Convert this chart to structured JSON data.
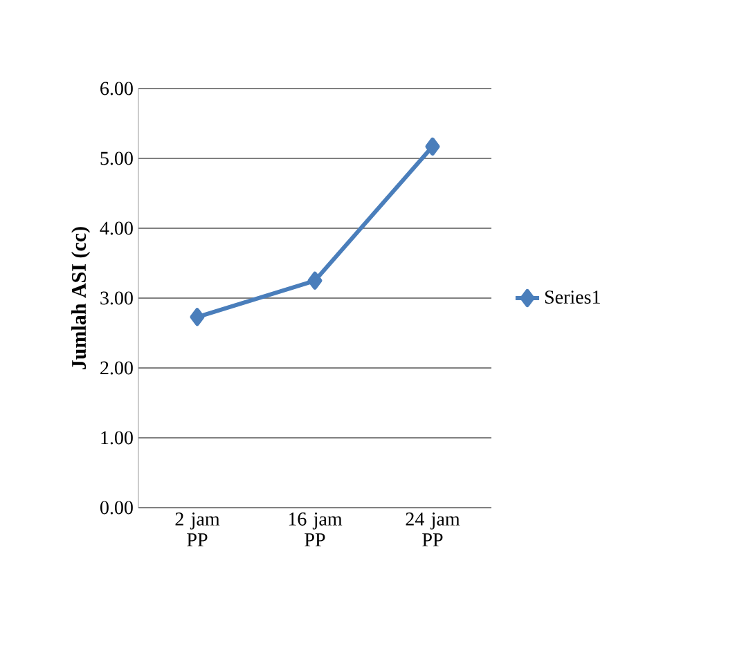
{
  "chart_data": {
    "type": "line",
    "ylabel": "Jumlah ASI (cc)",
    "categories": [
      "2 jam PP",
      "16 jam PP",
      "24 jam PP"
    ],
    "series": [
      {
        "name": "Series1",
        "color": "#4a7ebb",
        "values": [
          2.73,
          3.25,
          5.17
        ]
      }
    ],
    "ylim": [
      0,
      6
    ],
    "yticks": [
      {
        "value": 0,
        "label": "0.00"
      },
      {
        "value": 1,
        "label": "1.00"
      },
      {
        "value": 2,
        "label": "2.00"
      },
      {
        "value": 3,
        "label": "3.00"
      },
      {
        "value": 4,
        "label": "4.00"
      },
      {
        "value": 5,
        "label": "5.00"
      },
      {
        "value": 6,
        "label": "6.00"
      }
    ],
    "grid": "y",
    "legend": "right",
    "marker": "diamond",
    "line_style": "solid"
  }
}
